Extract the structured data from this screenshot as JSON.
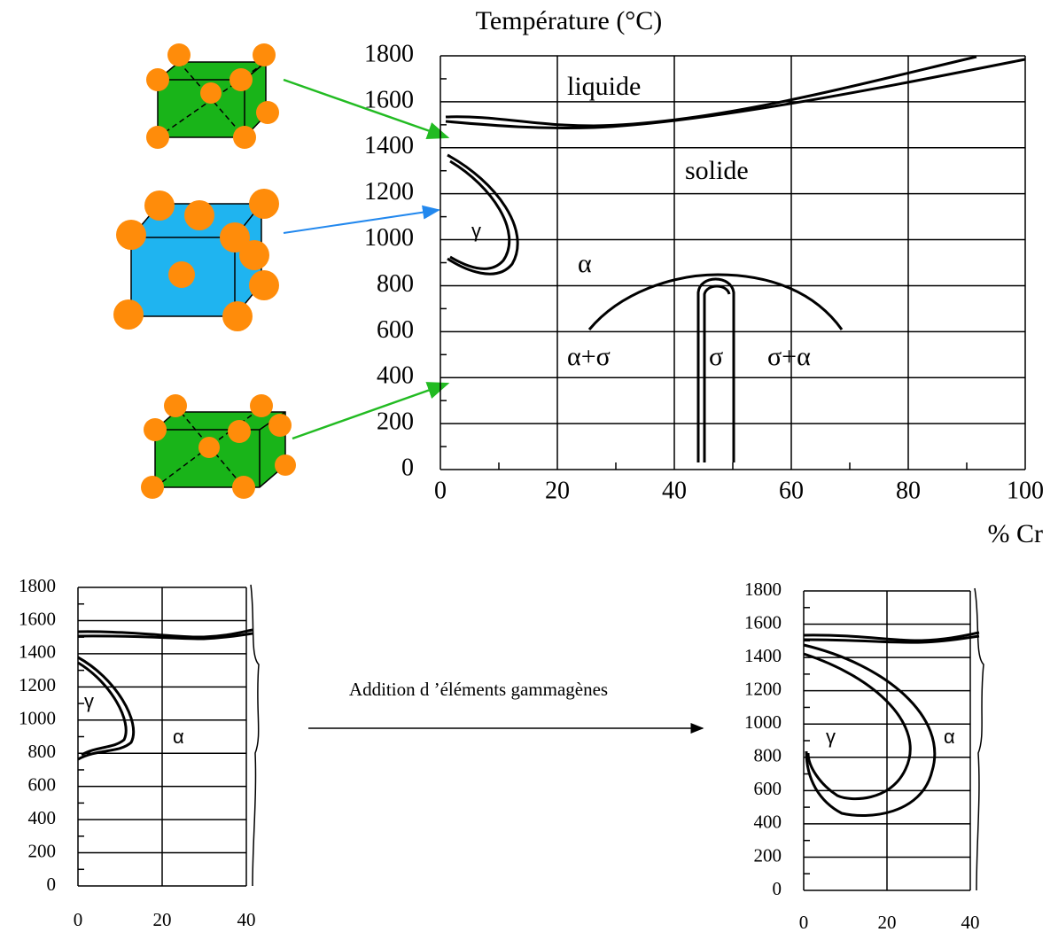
{
  "main": {
    "title": "Température (°C)",
    "xlabel": "% Cr",
    "yticks": [
      0,
      200,
      400,
      600,
      800,
      1000,
      1200,
      1400,
      1600,
      1800
    ],
    "xticks": [
      0,
      20,
      40,
      60,
      80,
      100
    ],
    "labels": [
      "liquide",
      "solide",
      "γ",
      "α",
      "α+σ",
      "σ",
      "σ+α"
    ]
  },
  "left": {
    "yticks": [
      0,
      200,
      400,
      600,
      800,
      1000,
      1200,
      1400,
      1600,
      1800
    ],
    "xticks": [
      0,
      20,
      40
    ],
    "labels": [
      "γ",
      "α"
    ]
  },
  "right": {
    "yticks": [
      0,
      200,
      400,
      600,
      800,
      1000,
      1200,
      1400,
      1600,
      1800
    ],
    "xticks": [
      0,
      20,
      40
    ],
    "labels": [
      "γ",
      "α"
    ]
  },
  "arrow_label": "Addition d ’éléments gammagènes"
}
